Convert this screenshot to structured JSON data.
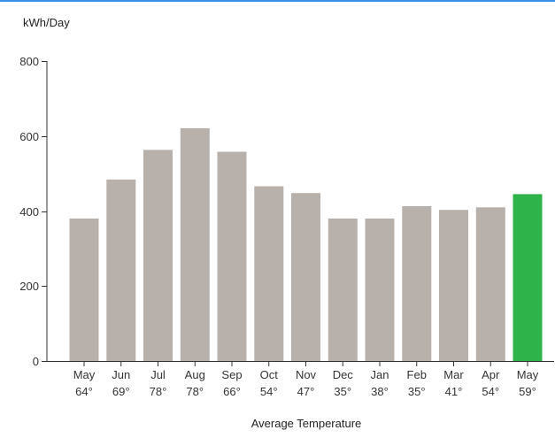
{
  "chart_data": {
    "type": "bar",
    "ylabel": "kWh/Day",
    "xlabel": "Average Temperature",
    "ylim": [
      0,
      800
    ],
    "yticks": [
      0,
      200,
      400,
      600,
      800
    ],
    "categories": [
      "May",
      "Jun",
      "Jul",
      "Aug",
      "Sep",
      "Oct",
      "Nov",
      "Dec",
      "Jan",
      "Feb",
      "Mar",
      "Apr",
      "May"
    ],
    "temperatures": [
      "64°",
      "69°",
      "78°",
      "78°",
      "66°",
      "54°",
      "47°",
      "35°",
      "38°",
      "35°",
      "41°",
      "54°",
      "59°"
    ],
    "values": [
      380,
      484,
      563,
      621,
      558,
      466,
      448,
      380,
      380,
      413,
      403,
      410,
      445
    ],
    "colors": {
      "bar": "#b8b0ab",
      "highlight": "#2db34a",
      "axis": "#333333",
      "top_rule": "#3a8ee6"
    },
    "highlight_index": 12,
    "grid": false
  }
}
